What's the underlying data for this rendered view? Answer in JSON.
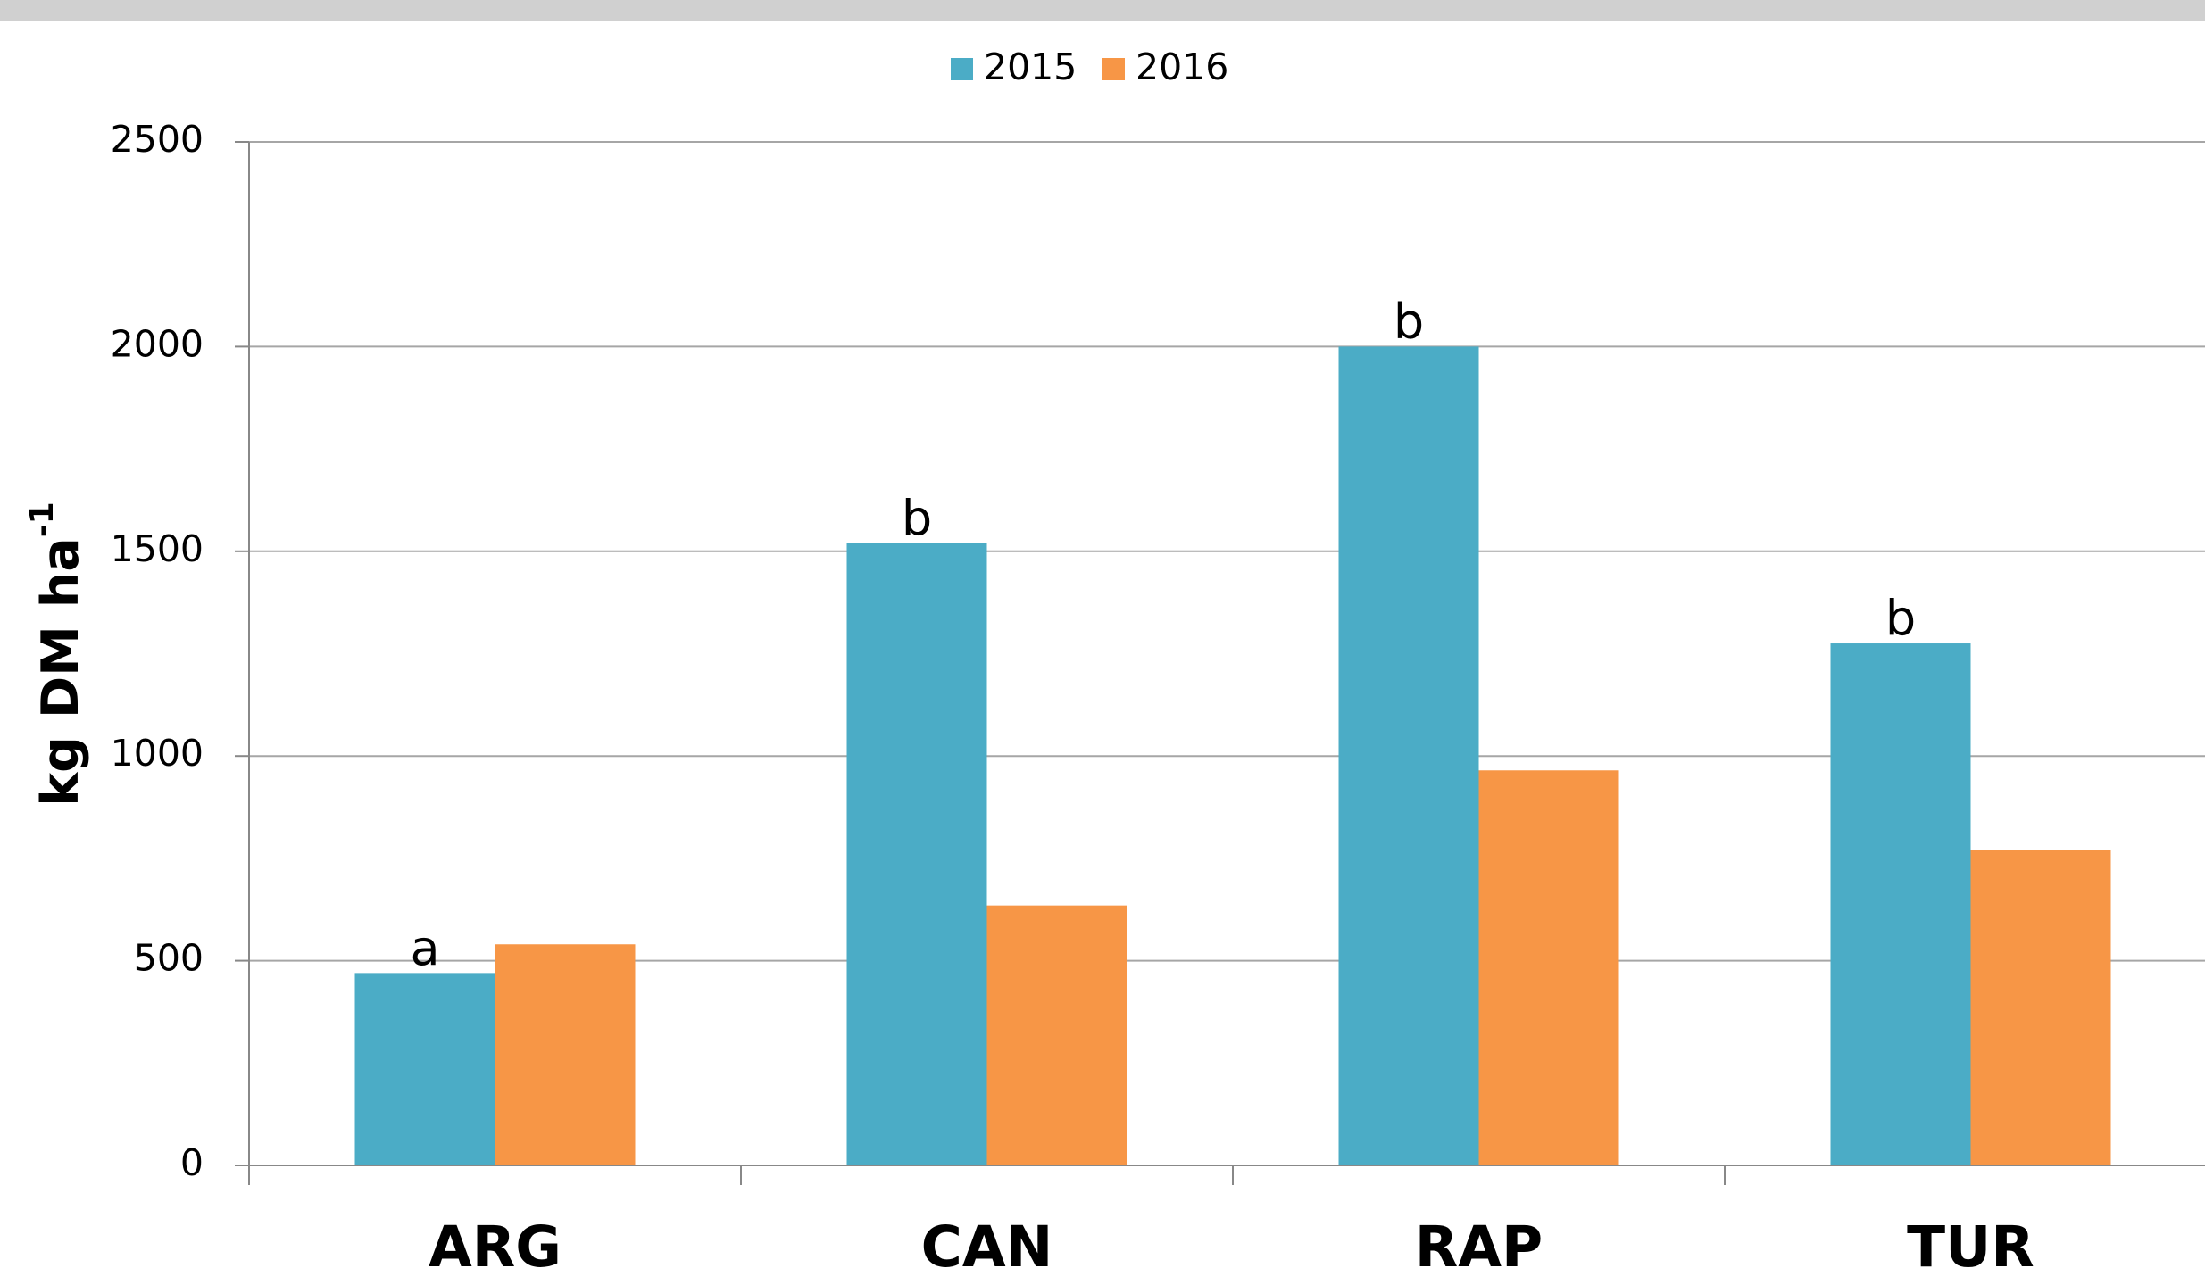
{
  "chart_data": {
    "type": "bar",
    "categories": [
      "ARG",
      "CAN",
      "RAP",
      "TUR"
    ],
    "series": [
      {
        "name": "2015",
        "color": "#4bacc6",
        "values": [
          470,
          1520,
          2000,
          1275
        ],
        "labels": [
          "a",
          "b",
          "b",
          "b"
        ]
      },
      {
        "name": "2016",
        "color": "#f79646",
        "values": [
          540,
          635,
          965,
          770
        ]
      }
    ],
    "ylabel": {
      "text": "kg DM ha",
      "superscript": "-1"
    },
    "ylim": [
      0,
      2500
    ],
    "yticks": [
      0,
      500,
      1000,
      1500,
      2000,
      2500
    ],
    "grid": true,
    "legend": "top"
  }
}
